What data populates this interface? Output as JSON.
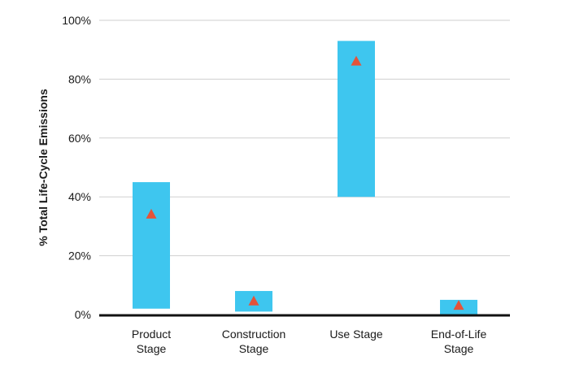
{
  "chart_data": {
    "type": "range-bar",
    "title": "",
    "xlabel": "",
    "ylabel": "% Total Life-Cycle Emissions",
    "ylim": [
      0,
      100
    ],
    "yticks": [
      0,
      20,
      40,
      60,
      80,
      100
    ],
    "ytick_labels": [
      "0%",
      "20%",
      "40%",
      "60%",
      "80%",
      "100%"
    ],
    "grid": true,
    "categories": [
      [
        "Product",
        "Stage"
      ],
      [
        "Construction",
        "Stage"
      ],
      [
        "Use Stage"
      ],
      [
        "End-of-Life",
        "Stage"
      ]
    ],
    "ranges": [
      {
        "min": 2,
        "max": 45
      },
      {
        "min": 1,
        "max": 8
      },
      {
        "min": 40,
        "max": 93
      },
      {
        "min": 0,
        "max": 5
      }
    ],
    "markers": [
      34,
      4.5,
      86,
      3
    ],
    "colors": {
      "bar": "#3ec6ef",
      "marker": "#e4533a",
      "grid": "#cfcfcf",
      "axis": "#111111"
    }
  }
}
